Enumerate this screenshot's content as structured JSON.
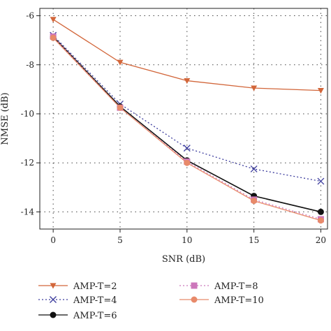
{
  "chart_data": {
    "type": "line",
    "xlabel": "SNR (dB)",
    "ylabel": "NMSE (dB)",
    "x": [
      0,
      5,
      10,
      15,
      20
    ],
    "xlim": [
      -1,
      20.5
    ],
    "ylim": [
      -14.7,
      -5.7
    ],
    "xticks": [
      "0",
      "5",
      "10",
      "15",
      "20"
    ],
    "yticks": [
      "-6",
      "-8",
      "-10",
      "-12",
      "-14"
    ],
    "grid": true,
    "legend_position": "bottom",
    "series": [
      {
        "name": "AMP-T=2",
        "values": [
          -6.15,
          -7.9,
          -8.65,
          -8.95,
          -9.05
        ],
        "color": "#d2663a",
        "marker": "triangle-down",
        "dash": "solid"
      },
      {
        "name": "AMP-T=4",
        "values": [
          -6.8,
          -9.6,
          -11.4,
          -12.25,
          -12.75
        ],
        "color": "#3d3d9e",
        "marker": "x",
        "dash": "dotted"
      },
      {
        "name": "AMP-T=6",
        "values": [
          -6.85,
          -9.7,
          -11.9,
          -13.35,
          -14.0
        ],
        "color": "#111111",
        "marker": "circle",
        "dash": "solid"
      },
      {
        "name": "AMP-T=8",
        "values": [
          -6.85,
          -9.75,
          -11.95,
          -13.5,
          -14.3
        ],
        "color": "#cc77bb",
        "marker": "square",
        "dash": "dotted"
      },
      {
        "name": "AMP-T=10",
        "values": [
          -6.9,
          -9.75,
          -12.0,
          -13.55,
          -14.35
        ],
        "color": "#e88a6a",
        "marker": "circle",
        "dash": "solid"
      }
    ]
  }
}
